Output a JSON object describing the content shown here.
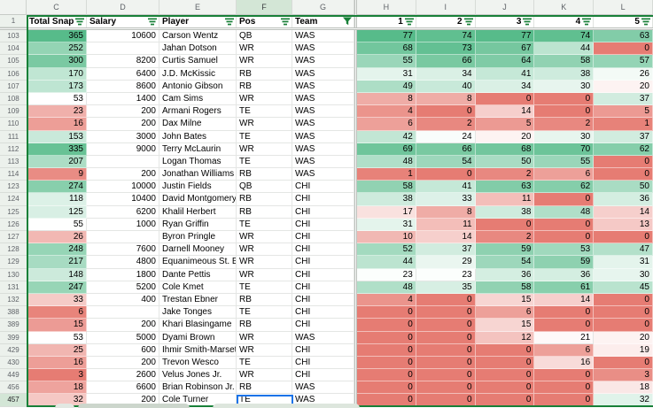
{
  "sheet": {
    "header_row_number": "1",
    "hidden_cols_indicator": "▶",
    "columns": [
      {
        "letter": "C",
        "label": "Total Snaps",
        "filter": "lines",
        "align": "left"
      },
      {
        "letter": "D",
        "label": "Salary",
        "filter": "lines",
        "align": "left"
      },
      {
        "letter": "E",
        "label": "Player",
        "filter": "lines",
        "align": "left"
      },
      {
        "letter": "F",
        "label": "Pos",
        "filter": "lines",
        "align": "left"
      },
      {
        "letter": "G",
        "label": "Team",
        "filter": "funnel-active",
        "align": "left"
      },
      {
        "letter": "H",
        "label": "1",
        "filter": "lines",
        "align": "right"
      },
      {
        "letter": "I",
        "label": "2",
        "filter": "lines",
        "align": "right"
      },
      {
        "letter": "J",
        "label": "3",
        "filter": "lines",
        "align": "right"
      },
      {
        "letter": "K",
        "label": "4",
        "filter": "lines",
        "align": "right"
      },
      {
        "letter": "L",
        "label": "5",
        "filter": "lines",
        "align": "right"
      }
    ],
    "rows": [
      {
        "n": "103",
        "snaps": 365,
        "salary": "10600",
        "player": "Carson Wentz",
        "pos": "QB",
        "team": "WAS",
        "weeks": [
          77,
          74,
          77,
          74,
          63
        ]
      },
      {
        "n": "104",
        "snaps": 252,
        "salary": "",
        "player": "Jahan Dotson",
        "pos": "WR",
        "team": "WAS",
        "weeks": [
          68,
          73,
          67,
          44,
          0
        ]
      },
      {
        "n": "105",
        "snaps": 300,
        "salary": "8200",
        "player": "Curtis Samuel",
        "pos": "WR",
        "team": "WAS",
        "weeks": [
          55,
          66,
          64,
          58,
          57
        ]
      },
      {
        "n": "106",
        "snaps": 170,
        "salary": "6400",
        "player": "J.D. McKissic",
        "pos": "RB",
        "team": "WAS",
        "weeks": [
          31,
          34,
          41,
          38,
          26
        ]
      },
      {
        "n": "107",
        "snaps": 173,
        "salary": "8600",
        "player": "Antonio Gibson",
        "pos": "RB",
        "team": "WAS",
        "weeks": [
          49,
          40,
          34,
          30,
          20
        ]
      },
      {
        "n": "108",
        "snaps": 53,
        "salary": "1400",
        "player": "Cam Sims",
        "pos": "WR",
        "team": "WAS",
        "weeks": [
          8,
          8,
          0,
          0,
          37
        ]
      },
      {
        "n": "109",
        "snaps": 23,
        "salary": "200",
        "player": "Armani Rogers",
        "pos": "TE",
        "team": "WAS",
        "weeks": [
          4,
          0,
          14,
          0,
          5
        ]
      },
      {
        "n": "110",
        "snaps": 16,
        "salary": "200",
        "player": "Dax Milne",
        "pos": "WR",
        "team": "WAS",
        "weeks": [
          6,
          2,
          5,
          2,
          1
        ]
      },
      {
        "n": "111",
        "snaps": 153,
        "salary": "3000",
        "player": "John Bates",
        "pos": "TE",
        "team": "WAS",
        "weeks": [
          42,
          24,
          20,
          30,
          37
        ]
      },
      {
        "n": "112",
        "snaps": 335,
        "salary": "9000",
        "player": "Terry McLaurin",
        "pos": "WR",
        "team": "WAS",
        "weeks": [
          69,
          66,
          68,
          70,
          62
        ]
      },
      {
        "n": "113",
        "snaps": 207,
        "salary": "",
        "player": "Logan Thomas",
        "pos": "TE",
        "team": "WAS",
        "weeks": [
          48,
          54,
          50,
          55,
          0
        ]
      },
      {
        "n": "114",
        "snaps": 9,
        "salary": "200",
        "player": "Jonathan Williams",
        "pos": "RB",
        "team": "WAS",
        "weeks": [
          1,
          0,
          2,
          6,
          0
        ]
      },
      {
        "n": "123",
        "snaps": 274,
        "salary": "10000",
        "player": "Justin Fields",
        "pos": "QB",
        "team": "CHI",
        "weeks": [
          58,
          41,
          63,
          62,
          50
        ]
      },
      {
        "n": "124",
        "snaps": 118,
        "salary": "10400",
        "player": "David Montgomery",
        "pos": "RB",
        "team": "CHI",
        "weeks": [
          38,
          33,
          11,
          0,
          36
        ]
      },
      {
        "n": "125",
        "snaps": 125,
        "salary": "6200",
        "player": "Khalil Herbert",
        "pos": "RB",
        "team": "CHI",
        "weeks": [
          17,
          8,
          38,
          48,
          14
        ]
      },
      {
        "n": "126",
        "snaps": 55,
        "salary": "1000",
        "player": "Ryan Griffin",
        "pos": "TE",
        "team": "CHI",
        "weeks": [
          31,
          11,
          0,
          0,
          13
        ]
      },
      {
        "n": "127",
        "snaps": 26,
        "salary": "",
        "player": "Byron Pringle",
        "pos": "WR",
        "team": "CHI",
        "weeks": [
          10,
          14,
          2,
          0,
          0
        ]
      },
      {
        "n": "128",
        "snaps": 248,
        "salary": "7600",
        "player": "Darnell Mooney",
        "pos": "WR",
        "team": "CHI",
        "weeks": [
          52,
          37,
          59,
          53,
          47
        ]
      },
      {
        "n": "129",
        "snaps": 217,
        "salary": "4800",
        "player": "Equanimeous St. Brown",
        "pos": "WR",
        "team": "CHI",
        "weeks": [
          44,
          29,
          54,
          59,
          31
        ]
      },
      {
        "n": "130",
        "snaps": 148,
        "salary": "1800",
        "player": "Dante Pettis",
        "pos": "WR",
        "team": "CHI",
        "weeks": [
          23,
          23,
          36,
          36,
          30
        ]
      },
      {
        "n": "131",
        "snaps": 247,
        "salary": "5200",
        "player": "Cole Kmet",
        "pos": "TE",
        "team": "CHI",
        "weeks": [
          48,
          35,
          58,
          61,
          45
        ]
      },
      {
        "n": "132",
        "snaps": 33,
        "salary": "400",
        "player": "Trestan Ebner",
        "pos": "RB",
        "team": "CHI",
        "weeks": [
          4,
          0,
          15,
          14,
          0
        ]
      },
      {
        "n": "388",
        "snaps": 6,
        "salary": "",
        "player": "Jake Tonges",
        "pos": "TE",
        "team": "CHI",
        "weeks": [
          0,
          0,
          6,
          0,
          0
        ]
      },
      {
        "n": "389",
        "snaps": 15,
        "salary": "200",
        "player": "Khari Blasingame",
        "pos": "RB",
        "team": "CHI",
        "weeks": [
          0,
          0,
          15,
          0,
          0
        ]
      },
      {
        "n": "399",
        "snaps": 53,
        "salary": "5000",
        "player": "Dyami Brown",
        "pos": "WR",
        "team": "WAS",
        "weeks": [
          0,
          0,
          12,
          21,
          20
        ]
      },
      {
        "n": "429",
        "snaps": 25,
        "salary": "600",
        "player": "Ihmir Smith-Marsette",
        "pos": "WR",
        "team": "CHI",
        "weeks": [
          0,
          0,
          0,
          6,
          19
        ]
      },
      {
        "n": "430",
        "snaps": 16,
        "salary": "200",
        "player": "Trevon Wesco",
        "pos": "TE",
        "team": "CHI",
        "weeks": [
          0,
          0,
          0,
          16,
          0
        ]
      },
      {
        "n": "449",
        "snaps": 3,
        "salary": "2600",
        "player": "Velus Jones Jr.",
        "pos": "WR",
        "team": "CHI",
        "weeks": [
          0,
          0,
          0,
          0,
          3
        ]
      },
      {
        "n": "456",
        "snaps": 18,
        "salary": "6600",
        "player": "Brian Robinson Jr.",
        "pos": "RB",
        "team": "WAS",
        "weeks": [
          0,
          0,
          0,
          0,
          18
        ]
      },
      {
        "n": "457",
        "snaps": 32,
        "salary": "200",
        "player": "Cole Turner",
        "pos": "TE",
        "team": "WAS",
        "weeks": [
          0,
          0,
          0,
          0,
          32
        ]
      }
    ],
    "selection": {
      "row": "457",
      "column": "F"
    },
    "colors": {
      "scale_green": "#57bb8a",
      "scale_white": "#ffffff",
      "scale_red": "#e67c73",
      "filter_green": "#188038",
      "selection_blue": "#1a73e8"
    },
    "scales": {
      "snaps": {
        "min": 3,
        "mid": 53,
        "max": 365
      },
      "weeks": {
        "min": 0,
        "mid": 22,
        "max": 77
      }
    }
  }
}
